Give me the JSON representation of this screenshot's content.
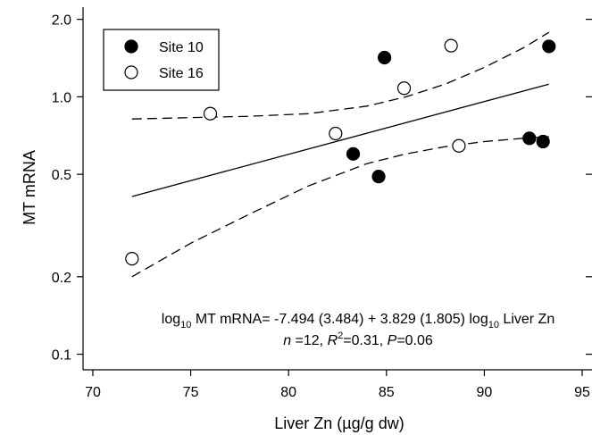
{
  "chart_data": {
    "type": "scatter",
    "x_axis": {
      "label": "Liver Zn (µg/g dw)",
      "range": [
        69.5,
        95.5
      ],
      "scale": "linear",
      "ticks": [
        70,
        75,
        80,
        85,
        90,
        95
      ],
      "tick_labels": [
        "70",
        "75",
        "80",
        "85",
        "90",
        "95"
      ]
    },
    "y_axis": {
      "label": "MT mRNA",
      "range": [
        0.087,
        2.23
      ],
      "scale": "log",
      "ticks": [
        0.1,
        0.2,
        0.5,
        1.0,
        2.0
      ],
      "tick_labels": [
        "0.1",
        "0.2",
        "0.5",
        "1.0",
        "2.0"
      ]
    },
    "grid": false,
    "legend_position": "top-left",
    "series": [
      {
        "name": "Site 10",
        "marker": "filled-circle",
        "color": "#000000",
        "x": [
          83.3,
          84.6,
          84.9,
          92.3,
          93.0,
          93.3
        ],
        "y": [
          0.6,
          0.49,
          1.42,
          0.69,
          0.67,
          1.57
        ]
      },
      {
        "name": "Site 16",
        "marker": "open-circle",
        "color": "#ffffff",
        "x": [
          72.0,
          76.0,
          82.4,
          85.9,
          88.3,
          88.7
        ],
        "y": [
          0.235,
          0.86,
          0.72,
          1.08,
          1.58,
          0.645
        ]
      }
    ],
    "regression": {
      "x": [
        72,
        93.3
      ],
      "y": [
        0.41,
        1.12
      ]
    },
    "confidence_band_upper": {
      "x": [
        72,
        75,
        78,
        81,
        84,
        86,
        88,
        90,
        92,
        93.3
      ],
      "y": [
        0.82,
        0.83,
        0.84,
        0.86,
        0.92,
        1.0,
        1.12,
        1.3,
        1.55,
        1.78
      ]
    },
    "confidence_band_lower": {
      "x": [
        72,
        75,
        78,
        81,
        84,
        86,
        88,
        90,
        92,
        93.3
      ],
      "y": [
        0.2,
        0.27,
        0.35,
        0.45,
        0.55,
        0.6,
        0.64,
        0.67,
        0.69,
        0.7
      ]
    },
    "equation": {
      "line1_prefix": "log",
      "line1_sub1": "10",
      "line1_mid": " MT mRNA= -7.494 (3.484) + 3.829 (1.805) log",
      "line1_sub2": "10",
      "line1_suffix": " Liver Zn",
      "line2_n_label": "n",
      "line2_n_value": " =12, ",
      "line2_r_label": "R",
      "line2_r_sup": "2",
      "line2_r_value": "=0.31, ",
      "line2_p_label": "P",
      "line2_p_value": "=0.06"
    }
  }
}
